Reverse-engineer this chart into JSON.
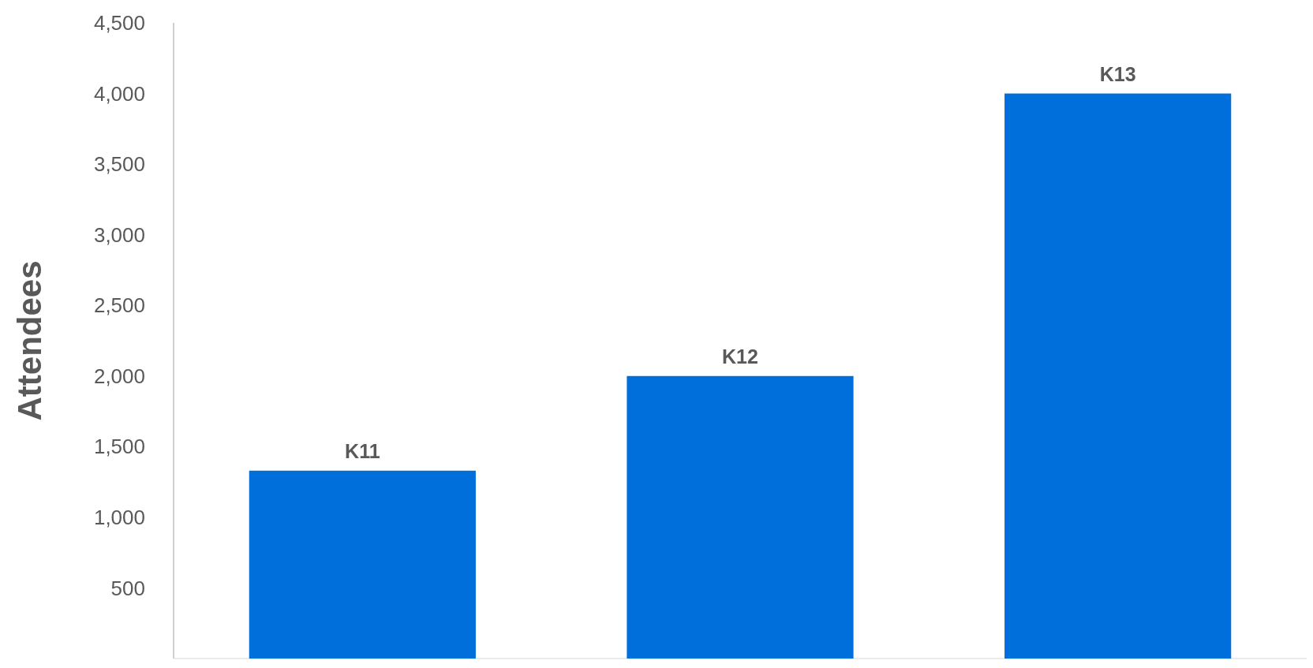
{
  "chart_data": {
    "type": "bar",
    "ylabel": "Attendees",
    "categories": [
      "K11",
      "K12",
      "K13"
    ],
    "values": [
      1330,
      2000,
      4000
    ],
    "color": "#006fdc",
    "ylim": [
      0,
      4500
    ],
    "yticks": [
      500,
      {
        "value": 1000,
        "label": "1,000"
      },
      {
        "value": 1500,
        "label": "1,500"
      },
      {
        "value": 2000,
        "label": "2,000"
      },
      {
        "value": 2500,
        "label": "2,500"
      },
      {
        "value": 3000,
        "label": "3,000"
      },
      {
        "value": 3500,
        "label": "3,500"
      },
      {
        "value": 4000,
        "label": "4,000"
      },
      {
        "value": 4500,
        "label": "4,500"
      }
    ],
    "grid": false
  }
}
